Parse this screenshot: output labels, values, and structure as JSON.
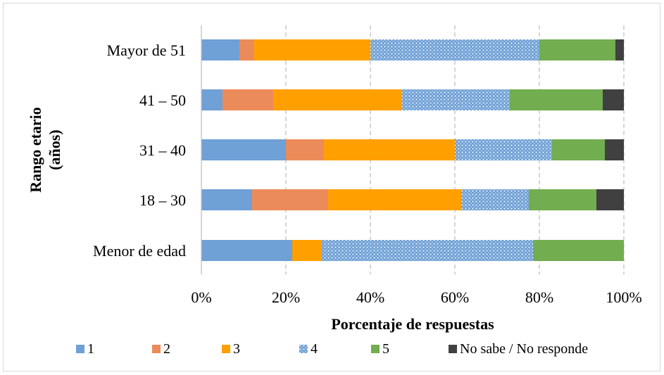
{
  "chart_data": {
    "type": "bar",
    "orientation": "horizontal",
    "stacked": true,
    "percent_stacked": true,
    "title": "",
    "xlabel": "Porcentaje de respuestas",
    "ylabel": "Rango etario (años)",
    "ylabel_lines": [
      "Rango etario",
      "(años)"
    ],
    "xlim": [
      0,
      100
    ],
    "x_ticks": [
      0,
      20,
      40,
      60,
      80,
      100
    ],
    "x_tick_labels": [
      "0%",
      "20%",
      "40%",
      "60%",
      "80%",
      "100%"
    ],
    "grid": "vertical dashed",
    "legend_position": "bottom",
    "categories": [
      "Mayor de 51",
      "41 – 50",
      "31 – 40",
      "18 – 30",
      "Menor de edad"
    ],
    "series": [
      {
        "name": "1",
        "color": "#6fa0d6",
        "pattern": "solid",
        "values": [
          9,
          5,
          20,
          12,
          21.5
        ]
      },
      {
        "name": "2",
        "color": "#ec8b5a",
        "pattern": "solid",
        "values": [
          3.5,
          12,
          9,
          18,
          0
        ]
      },
      {
        "name": "3",
        "color": "#ffa000",
        "pattern": "solid",
        "values": [
          27.5,
          30.5,
          31,
          31.5,
          7
        ]
      },
      {
        "name": "4",
        "color": "#6fa0d6",
        "pattern": "dotted",
        "values": [
          40,
          25.5,
          23,
          16,
          50
        ]
      },
      {
        "name": "5",
        "color": "#72ad50",
        "pattern": "solid",
        "values": [
          18,
          22,
          12.5,
          16,
          21.5
        ]
      },
      {
        "name": "No sabe / No responde",
        "color": "#404040",
        "pattern": "solid",
        "values": [
          2,
          5,
          4.5,
          6.5,
          0
        ]
      }
    ]
  }
}
